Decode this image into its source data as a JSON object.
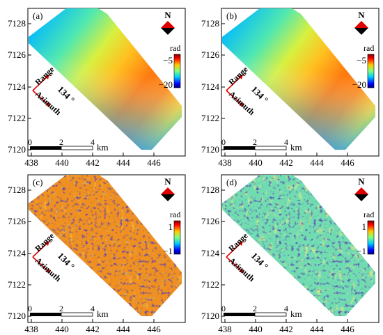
{
  "panels": [
    {
      "label": "(a)",
      "kind": "phase",
      "colorbar": {
        "unit": "rad",
        "max_label": "−5",
        "min_label": "−20"
      }
    },
    {
      "label": "(b)",
      "kind": "phase",
      "colorbar": {
        "unit": "rad",
        "max_label": "−5",
        "min_label": "−20"
      }
    },
    {
      "label": "(c)",
      "kind": "residual_warm",
      "colorbar": {
        "unit": "rad",
        "max_label": "1",
        "min_label": "−1"
      }
    },
    {
      "label": "(d)",
      "kind": "residual_neutral",
      "colorbar": {
        "unit": "rad",
        "max_label": "1",
        "min_label": "−1"
      }
    }
  ],
  "x_ticks": [
    "438",
    "440",
    "442",
    "444",
    "446"
  ],
  "y_ticks": [
    "7128",
    "7126",
    "7124",
    "7122",
    "7120"
  ],
  "north_label": "N",
  "geometry": {
    "range": "Range",
    "azimuth": "Azimuth",
    "angle": "134 °"
  },
  "scalebar": {
    "labels": [
      "0",
      "2",
      "4"
    ],
    "unit": "km"
  },
  "colors": {
    "red": "#e00000",
    "frame": "#000000"
  }
}
